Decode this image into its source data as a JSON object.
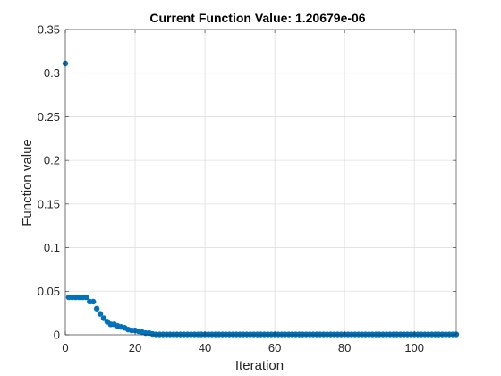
{
  "chart_data": {
    "type": "scatter",
    "title": "Current Function Value: 1.20679e-06",
    "xlabel": "Iteration",
    "ylabel": "Function value",
    "xlim": [
      0,
      112
    ],
    "ylim": [
      0,
      0.35
    ],
    "xticks": [
      0,
      20,
      40,
      60,
      80,
      100
    ],
    "yticks": [
      0,
      0.05,
      0.1,
      0.15,
      0.2,
      0.25,
      0.3,
      0.35
    ],
    "ytick_labels": [
      "0",
      "0.05",
      "0.1",
      "0.15",
      "0.2",
      "0.25",
      "0.3",
      "0.35"
    ],
    "grid": true,
    "marker_color": "#0072BD",
    "series": [
      {
        "points": [
          [
            0,
            0.311
          ],
          [
            1,
            0.043
          ],
          [
            2,
            0.043
          ],
          [
            3,
            0.043
          ],
          [
            4,
            0.043
          ],
          [
            5,
            0.043
          ],
          [
            6,
            0.043
          ],
          [
            7,
            0.038
          ],
          [
            8,
            0.038
          ],
          [
            9,
            0.03
          ],
          [
            10,
            0.024
          ],
          [
            11,
            0.019
          ],
          [
            12,
            0.015
          ],
          [
            13,
            0.012
          ],
          [
            14,
            0.012
          ],
          [
            15,
            0.01
          ],
          [
            16,
            0.009
          ],
          [
            17,
            0.008
          ],
          [
            18,
            0.006
          ],
          [
            19,
            0.005
          ],
          [
            20,
            0.005
          ],
          [
            21,
            0.004
          ],
          [
            22,
            0.003
          ],
          [
            23,
            0.002
          ],
          [
            24,
            0.002
          ],
          [
            25,
            0.001
          ]
        ],
        "tail": {
          "from": 26,
          "to": 112,
          "value": 0.0005
        }
      }
    ]
  }
}
